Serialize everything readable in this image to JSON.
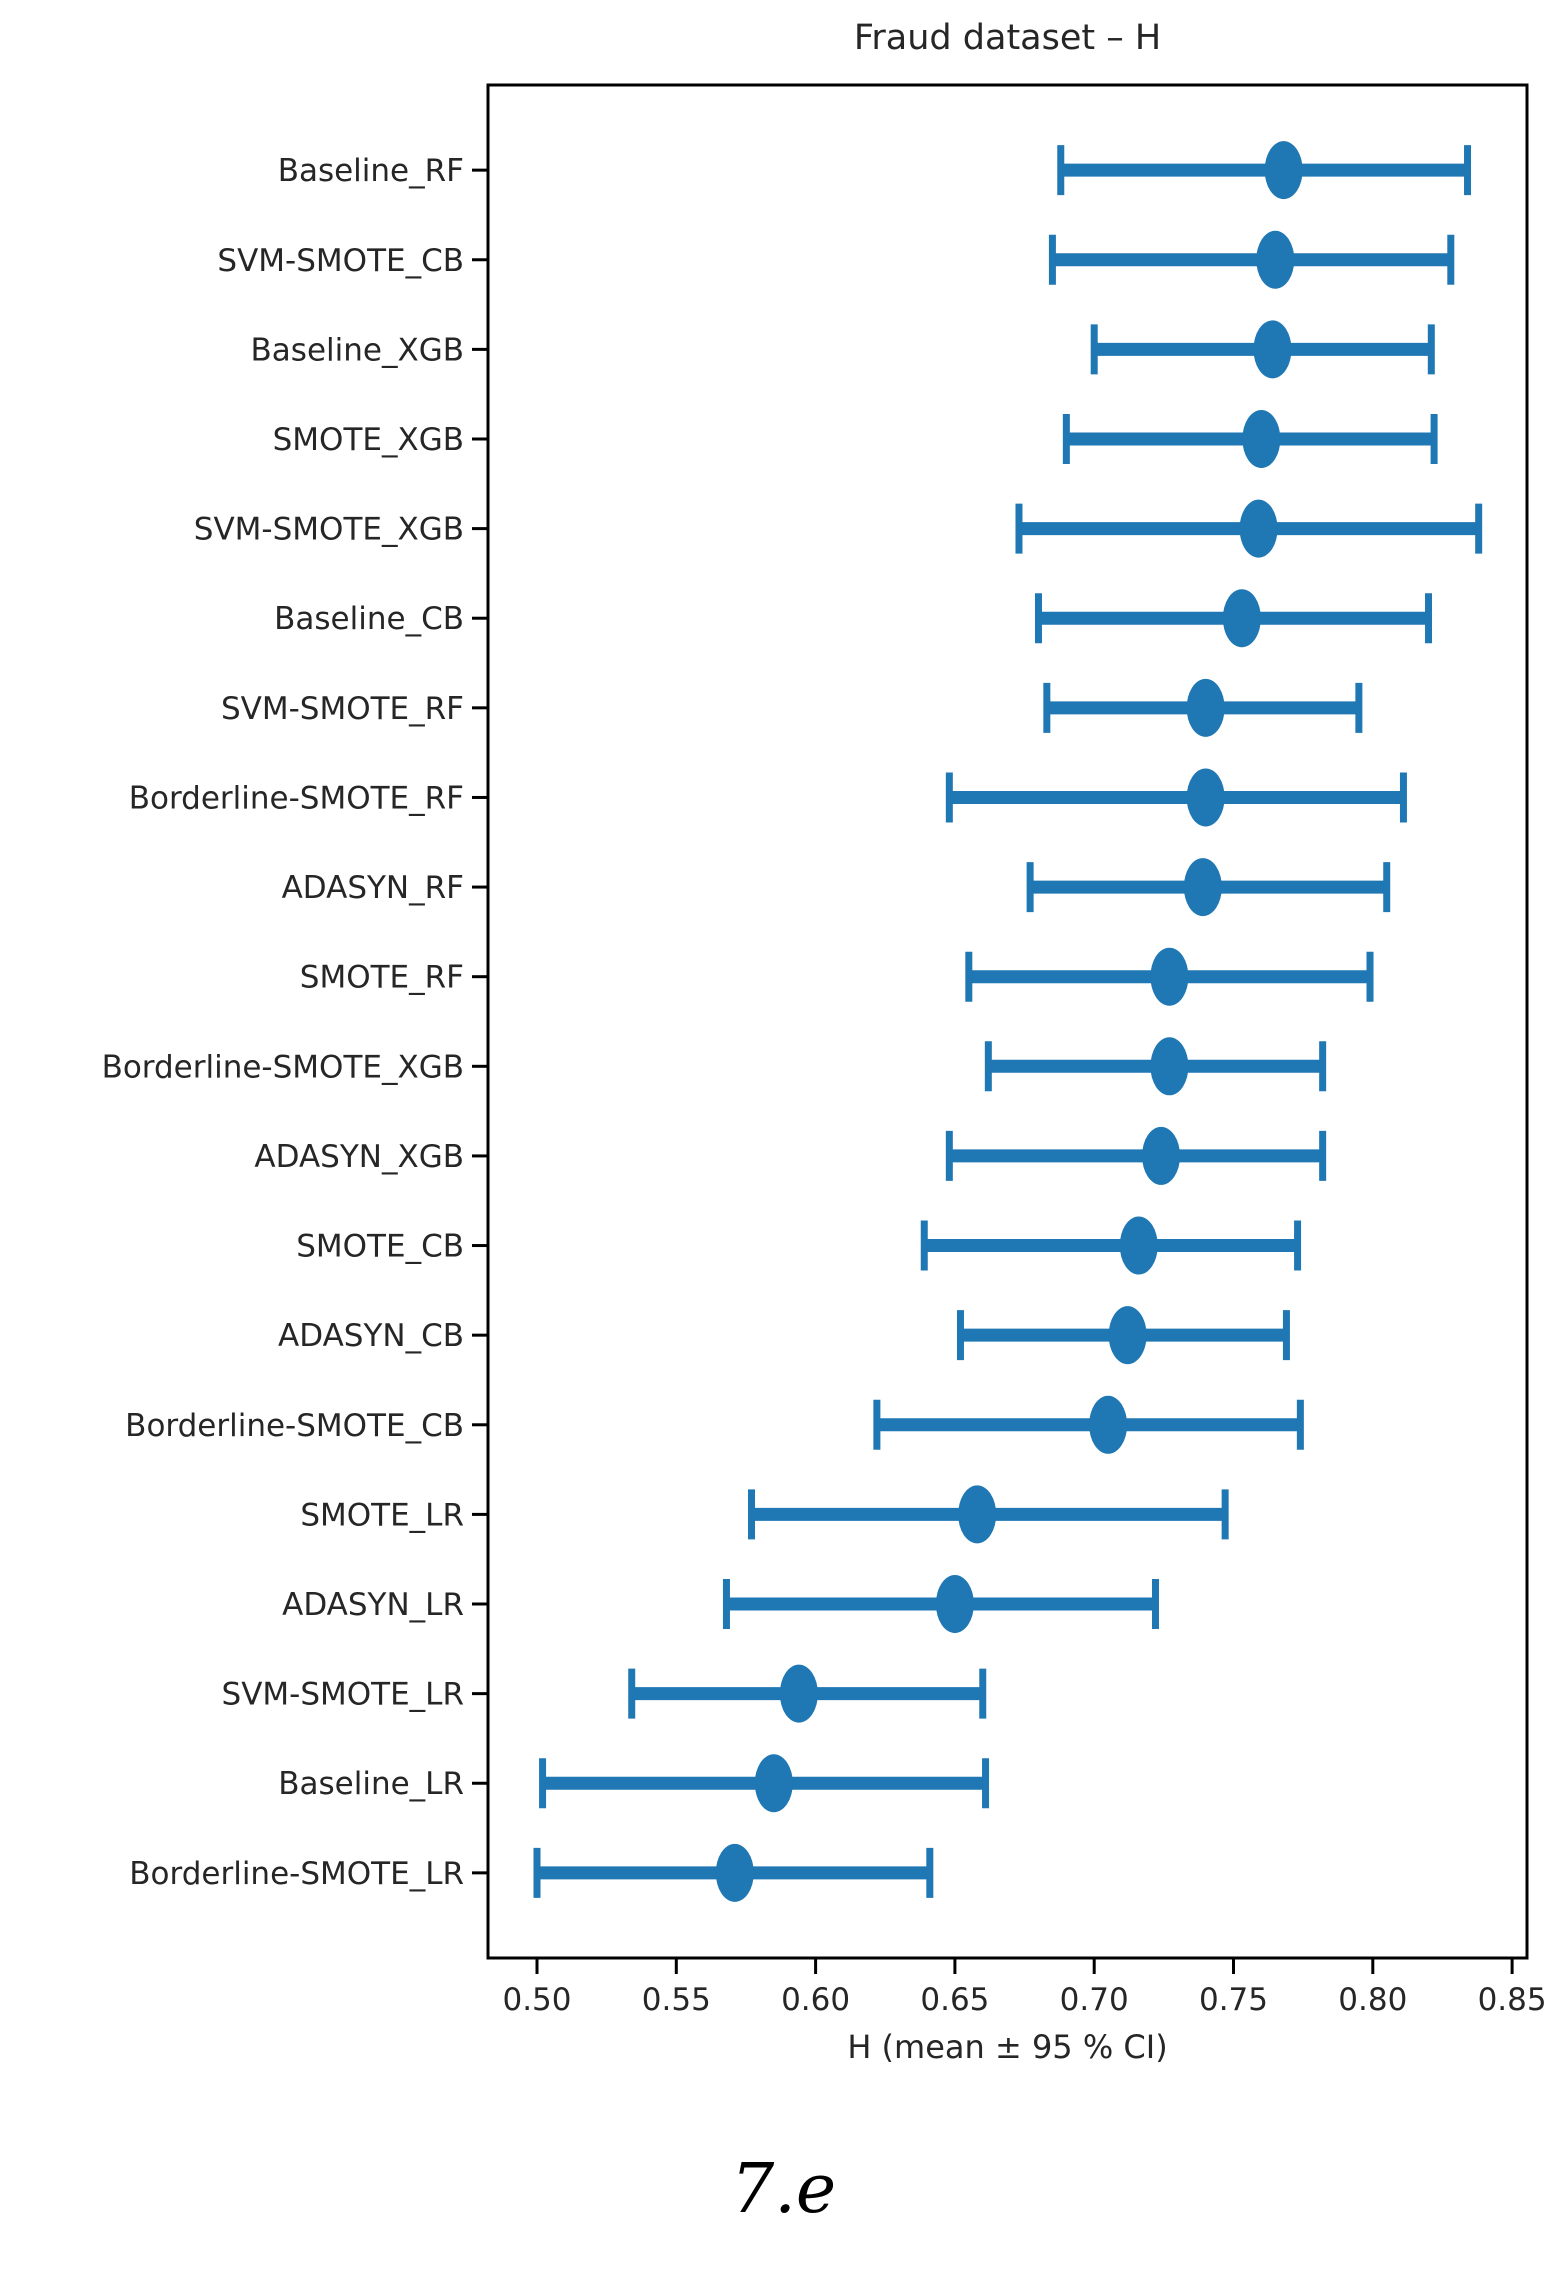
{
  "figure": {
    "caption": "7.e"
  },
  "chart_data": {
    "type": "scatter",
    "subtype": "horizontal-dot-plot-with-error-bars",
    "title": "Fraud dataset – H",
    "xlabel": "H (mean ± 95 % CI)",
    "ylabel": "",
    "xlim": [
      0.482,
      0.855
    ],
    "xticks": [
      "0.50",
      "0.55",
      "0.60",
      "0.65",
      "0.70",
      "0.75",
      "0.80",
      "0.85"
    ],
    "grid": false,
    "legend": null,
    "marker_color": "#1f77b4",
    "axis_color": "#000000",
    "text_color": "#262626",
    "categories": [
      "Baseline_RF",
      "SVM-SMOTE_CB",
      "Baseline_XGB",
      "SMOTE_XGB",
      "SVM-SMOTE_XGB",
      "Baseline_CB",
      "SVM-SMOTE_RF",
      "Borderline-SMOTE_RF",
      "ADASYN_RF",
      "SMOTE_RF",
      "Borderline-SMOTE_XGB",
      "ADASYN_XGB",
      "SMOTE_CB",
      "ADASYN_CB",
      "Borderline-SMOTE_CB",
      "SMOTE_LR",
      "ADASYN_LR",
      "SVM-SMOTE_LR",
      "Baseline_LR",
      "Borderline-SMOTE_LR"
    ],
    "rows": [
      {
        "label": "Baseline_RF",
        "mean": 0.768,
        "ci_low": 0.688,
        "ci_high": 0.834
      },
      {
        "label": "SVM-SMOTE_CB",
        "mean": 0.765,
        "ci_low": 0.685,
        "ci_high": 0.828
      },
      {
        "label": "Baseline_XGB",
        "mean": 0.764,
        "ci_low": 0.7,
        "ci_high": 0.821
      },
      {
        "label": "SMOTE_XGB",
        "mean": 0.76,
        "ci_low": 0.69,
        "ci_high": 0.822
      },
      {
        "label": "SVM-SMOTE_XGB",
        "mean": 0.759,
        "ci_low": 0.673,
        "ci_high": 0.838
      },
      {
        "label": "Baseline_CB",
        "mean": 0.753,
        "ci_low": 0.68,
        "ci_high": 0.82
      },
      {
        "label": "SVM-SMOTE_RF",
        "mean": 0.74,
        "ci_low": 0.683,
        "ci_high": 0.795
      },
      {
        "label": "Borderline-SMOTE_RF",
        "mean": 0.74,
        "ci_low": 0.648,
        "ci_high": 0.811
      },
      {
        "label": "ADASYN_RF",
        "mean": 0.739,
        "ci_low": 0.677,
        "ci_high": 0.805
      },
      {
        "label": "SMOTE_RF",
        "mean": 0.727,
        "ci_low": 0.655,
        "ci_high": 0.799
      },
      {
        "label": "Borderline-SMOTE_XGB",
        "mean": 0.727,
        "ci_low": 0.662,
        "ci_high": 0.782
      },
      {
        "label": "ADASYN_XGB",
        "mean": 0.724,
        "ci_low": 0.648,
        "ci_high": 0.782
      },
      {
        "label": "SMOTE_CB",
        "mean": 0.716,
        "ci_low": 0.639,
        "ci_high": 0.773
      },
      {
        "label": "ADASYN_CB",
        "mean": 0.712,
        "ci_low": 0.652,
        "ci_high": 0.769
      },
      {
        "label": "Borderline-SMOTE_CB",
        "mean": 0.705,
        "ci_low": 0.622,
        "ci_high": 0.774
      },
      {
        "label": "SMOTE_LR",
        "mean": 0.658,
        "ci_low": 0.577,
        "ci_high": 0.747
      },
      {
        "label": "ADASYN_LR",
        "mean": 0.65,
        "ci_low": 0.568,
        "ci_high": 0.722
      },
      {
        "label": "SVM-SMOTE_LR",
        "mean": 0.594,
        "ci_low": 0.534,
        "ci_high": 0.66
      },
      {
        "label": "Baseline_LR",
        "mean": 0.585,
        "ci_low": 0.502,
        "ci_high": 0.661
      },
      {
        "label": "Borderline-SMOTE_LR",
        "mean": 0.571,
        "ci_low": 0.5,
        "ci_high": 0.641
      }
    ]
  }
}
